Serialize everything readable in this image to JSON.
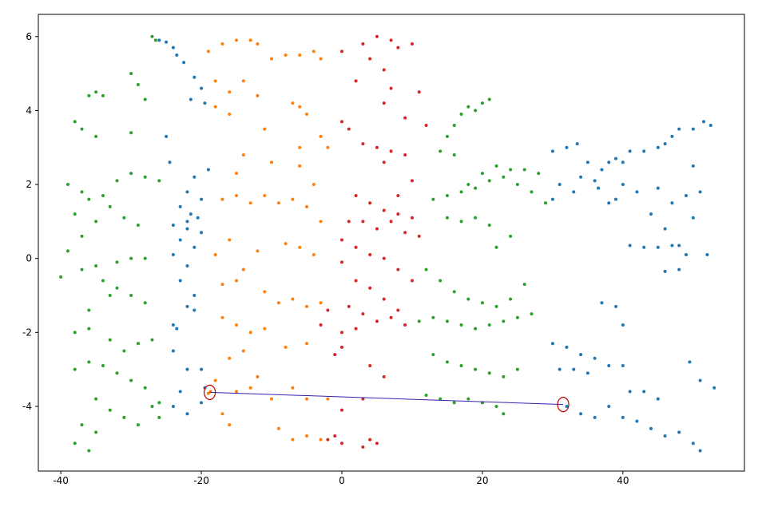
{
  "chart_data": {
    "type": "scatter",
    "xlim": [
      -43.2,
      57.3
    ],
    "ylim": [
      -5.75,
      6.6
    ],
    "xticks": [
      -40,
      -20,
      0,
      20,
      40
    ],
    "yticks": [
      -4,
      -2,
      0,
      2,
      4,
      6
    ],
    "highlight": {
      "color": "#c00000",
      "line_color": "#3a1fa8",
      "x": [
        -18.8,
        31.5
      ],
      "y": [
        -3.62,
        -3.95
      ]
    },
    "series": [
      {
        "color": "#1f77b4",
        "x": [
          -26,
          -25,
          -24,
          -23.5,
          -22.5,
          -21,
          -20,
          -21.5,
          -19.5,
          -25,
          -24.5,
          -21,
          -19,
          -22,
          -20,
          -23,
          -21.5,
          -20.5,
          -22,
          -24,
          -22,
          -20,
          -23,
          -21,
          -24,
          -22,
          -23,
          -21,
          -22,
          -24,
          -23.5,
          -21,
          -24,
          -22,
          -20,
          -23,
          -24,
          -22,
          -20,
          -19.5,
          30,
          32,
          33.5,
          35,
          34,
          36,
          37,
          38,
          39,
          40,
          41,
          43,
          45,
          46,
          47,
          48,
          50,
          51.5,
          52.5,
          31,
          33,
          30,
          36.5,
          38,
          39,
          40,
          42,
          45,
          47,
          49,
          51,
          50,
          44,
          46,
          50,
          41,
          43,
          45,
          47,
          48,
          49,
          52,
          46,
          48,
          37,
          39,
          40,
          32,
          30,
          34,
          36,
          31,
          33,
          35,
          38,
          40,
          43,
          45,
          41,
          32,
          34,
          36,
          38,
          40,
          42,
          44,
          46,
          48,
          50,
          51,
          49.5,
          51,
          53
        ],
        "y": [
          5.9,
          5.85,
          5.7,
          5.5,
          5.3,
          4.9,
          4.6,
          4.3,
          4.2,
          3.3,
          2.6,
          2.2,
          2.4,
          1.8,
          1.6,
          1.4,
          1.2,
          1.1,
          1.0,
          0.9,
          0.8,
          0.7,
          0.5,
          0.3,
          0.1,
          -0.2,
          -0.6,
          -1.0,
          -1.3,
          -1.8,
          -1.9,
          -1.4,
          -2.5,
          -3.0,
          -3.0,
          -3.6,
          -4.0,
          -4.2,
          -3.9,
          -3.5,
          2.9,
          3.0,
          3.1,
          2.6,
          2.2,
          2.1,
          2.4,
          2.6,
          2.7,
          2.6,
          2.9,
          2.9,
          3.0,
          3.1,
          3.3,
          3.5,
          3.5,
          3.7,
          3.6,
          2.0,
          1.8,
          1.6,
          1.9,
          1.5,
          1.6,
          2.0,
          1.8,
          1.9,
          1.5,
          1.7,
          1.8,
          2.5,
          1.2,
          0.8,
          1.1,
          0.35,
          0.3,
          0.3,
          0.35,
          0.35,
          0.1,
          0.1,
          -0.35,
          -0.3,
          -1.2,
          -1.3,
          -1.8,
          -2.4,
          -2.3,
          -2.6,
          -2.7,
          -3.0,
          -3.0,
          -3.1,
          -2.9,
          -2.9,
          -3.6,
          -3.8,
          -3.6,
          -4.0,
          -4.2,
          -4.3,
          -4.0,
          -4.3,
          -4.4,
          -4.6,
          -4.8,
          -4.7,
          -5.0,
          -5.2,
          -2.8,
          -3.3,
          -3.5
        ]
      },
      {
        "color": "#ff7f0e",
        "x": [
          -19,
          -17,
          -15,
          -13,
          -12,
          -10,
          -8,
          -6,
          -4,
          -3,
          -18,
          -16,
          -14,
          -12,
          -16,
          -18,
          -11,
          -7,
          -6,
          -5,
          -3,
          -2,
          -6,
          -14,
          -15,
          -10,
          -6,
          -4,
          -17,
          -15,
          -13,
          -11,
          -9,
          -7,
          -5,
          -3,
          -16,
          -18,
          -14,
          -12,
          -8,
          -6,
          -4,
          -17,
          -15,
          -11,
          -9,
          -7,
          -5,
          -3,
          -17,
          -15,
          -13,
          -11,
          -8,
          -5,
          -16,
          -14,
          -12,
          -18,
          -18.7,
          -19,
          -15,
          -13,
          -10,
          -7,
          -5,
          -17,
          -16,
          -9,
          -7,
          -5,
          -3,
          -2
        ],
        "y": [
          5.6,
          5.8,
          5.9,
          5.9,
          5.8,
          5.4,
          5.5,
          5.5,
          5.6,
          5.4,
          4.8,
          4.5,
          4.8,
          4.4,
          3.9,
          4.1,
          3.5,
          4.2,
          4.1,
          3.9,
          3.3,
          3.0,
          3.0,
          2.8,
          2.3,
          2.6,
          2.5,
          2.0,
          1.6,
          1.7,
          1.5,
          1.7,
          1.5,
          1.6,
          1.4,
          1.0,
          0.5,
          0.1,
          -0.3,
          0.2,
          0.4,
          0.3,
          0.1,
          -0.7,
          -0.6,
          -0.9,
          -1.2,
          -1.1,
          -1.3,
          -1.2,
          -1.6,
          -1.8,
          -2.0,
          -1.9,
          -2.4,
          -2.3,
          -2.7,
          -2.5,
          -3.2,
          -3.3,
          -3.6,
          -3.65,
          -3.6,
          -3.5,
          -3.8,
          -3.5,
          -3.8,
          -4.2,
          -4.5,
          -4.6,
          -4.9,
          -4.8,
          -4.9,
          -3.8
        ]
      },
      {
        "color": "#2ca02c",
        "x": [
          -27,
          -26.5,
          -36,
          -35,
          -34,
          -30,
          -29,
          -28,
          -38,
          -37,
          -35,
          -30,
          -39,
          -37,
          -36,
          -34,
          -32,
          -30,
          -28,
          -26,
          -38,
          -35,
          -33,
          -31,
          -29,
          -37,
          -39,
          -35,
          -32,
          -30,
          -28,
          -40,
          -37,
          -34,
          -32,
          -30,
          -28,
          -36,
          -33,
          -38,
          -36,
          -33,
          -31,
          -29,
          -27,
          -38,
          -36,
          -34,
          -32,
          -30,
          -28,
          -26,
          -35,
          -33,
          -31,
          -29,
          -37,
          -35,
          -38,
          -36,
          -27,
          -26,
          15,
          16,
          17,
          18,
          19,
          20,
          21,
          14,
          16,
          18,
          20,
          22,
          24,
          26,
          28,
          13,
          15,
          17,
          19,
          21,
          23,
          25,
          27,
          29,
          15,
          17,
          19,
          21,
          24,
          22,
          12,
          14,
          16,
          18,
          20,
          22,
          24,
          26,
          11,
          13,
          15,
          17,
          19,
          21,
          23,
          25,
          27,
          13,
          15,
          17,
          19,
          21,
          23,
          25,
          12,
          14,
          16,
          18,
          20,
          22,
          23
        ],
        "y": [
          6.0,
          5.9,
          4.4,
          4.5,
          4.4,
          5.0,
          4.7,
          4.3,
          3.7,
          3.5,
          3.3,
          3.4,
          2.0,
          1.8,
          1.6,
          1.7,
          2.1,
          2.3,
          2.2,
          2.1,
          1.2,
          1.0,
          1.4,
          1.1,
          0.9,
          0.6,
          0.2,
          -0.2,
          -0.1,
          0.0,
          0.0,
          -0.5,
          -0.3,
          -0.6,
          -0.8,
          -1.0,
          -1.2,
          -1.4,
          -1.0,
          -2.0,
          -1.9,
          -2.2,
          -2.5,
          -2.3,
          -2.2,
          -3.0,
          -2.8,
          -2.9,
          -3.1,
          -3.3,
          -3.5,
          -3.9,
          -3.8,
          -4.1,
          -4.3,
          -4.5,
          -4.5,
          -4.7,
          -5.0,
          -5.2,
          -4.0,
          -4.3,
          3.3,
          3.6,
          3.9,
          4.1,
          4.0,
          4.2,
          4.3,
          2.9,
          2.8,
          2.0,
          2.3,
          2.5,
          2.4,
          2.4,
          2.3,
          1.6,
          1.7,
          1.8,
          1.9,
          2.1,
          2.2,
          2.0,
          1.8,
          1.5,
          1.1,
          1.0,
          1.1,
          0.9,
          0.6,
          0.3,
          -0.3,
          -0.6,
          -0.9,
          -1.1,
          -1.2,
          -1.3,
          -1.1,
          -0.7,
          -1.7,
          -1.6,
          -1.7,
          -1.8,
          -1.9,
          -1.8,
          -1.7,
          -1.6,
          -1.5,
          -2.6,
          -2.8,
          -2.9,
          -3.0,
          -3.1,
          -3.2,
          -3.0,
          -3.7,
          -3.8,
          -3.9,
          -3.8,
          -3.9,
          -4.0,
          -4.2
        ]
      },
      {
        "color": "#d62728",
        "x": [
          0,
          3,
          5,
          7,
          8,
          10,
          4,
          6,
          2,
          7,
          11,
          6,
          9,
          0,
          1,
          3,
          5,
          7,
          9,
          12,
          6,
          10,
          8,
          2,
          4,
          6,
          8,
          10,
          1,
          3,
          5,
          7,
          9,
          11,
          0,
          2,
          4,
          6,
          8,
          10,
          0,
          2,
          4,
          6,
          1,
          3,
          5,
          7,
          9,
          -2,
          -3,
          0,
          2,
          8,
          -1,
          0,
          4,
          6,
          3,
          0,
          -1,
          0,
          3,
          4,
          5,
          -2
        ],
        "y": [
          5.6,
          5.8,
          6.0,
          5.9,
          5.7,
          5.8,
          5.4,
          5.1,
          4.8,
          4.6,
          4.5,
          4.2,
          3.8,
          3.7,
          3.5,
          3.1,
          3.0,
          2.9,
          2.8,
          3.6,
          2.6,
          2.1,
          1.7,
          1.7,
          1.5,
          1.3,
          1.2,
          1.1,
          1.0,
          1.0,
          0.8,
          1.0,
          0.7,
          0.6,
          0.5,
          0.3,
          0.1,
          0.0,
          -0.3,
          -0.6,
          -0.1,
          -0.6,
          -0.8,
          -1.1,
          -1.3,
          -1.5,
          -1.7,
          -1.6,
          -1.8,
          -1.4,
          -1.8,
          -2.0,
          -1.9,
          -1.4,
          -2.6,
          -2.4,
          -2.9,
          -3.2,
          -3.8,
          -4.1,
          -4.8,
          -5.0,
          -5.1,
          -4.9,
          -5.0,
          -4.9
        ]
      }
    ]
  }
}
